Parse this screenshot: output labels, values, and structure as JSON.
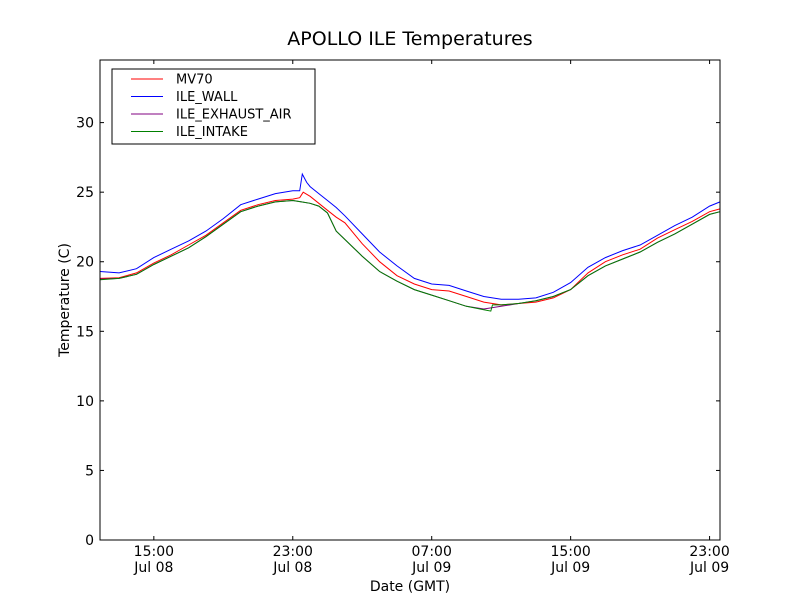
{
  "chart_data": {
    "type": "line",
    "title": "APOLLO ILE Temperatures",
    "xlabel": "Date (GMT)",
    "ylabel": "Temperature (C)",
    "ylim": [
      0,
      34.5
    ],
    "xlim_hours": [
      11.9,
      47.6
    ],
    "y_ticks": [
      0,
      5,
      10,
      15,
      20,
      25,
      30
    ],
    "x_ticks": [
      {
        "hour": 15,
        "time": "15:00",
        "date": "Jul 08"
      },
      {
        "hour": 23,
        "time": "23:00",
        "date": "Jul 08"
      },
      {
        "hour": 31,
        "time": "07:00",
        "date": "Jul 09"
      },
      {
        "hour": 39,
        "time": "15:00",
        "date": "Jul 09"
      },
      {
        "hour": 47,
        "time": "23:00",
        "date": "Jul 09"
      }
    ],
    "legend_position": "top-left",
    "series": [
      {
        "name": "MV70",
        "color": "#ff0000",
        "x": [
          11.9,
          13.0,
          14.0,
          15.0,
          16.0,
          17.0,
          18.0,
          19.0,
          20.0,
          21.0,
          22.0,
          23.0,
          23.4,
          23.6,
          24.0,
          24.5,
          25.0,
          25.5,
          26.0,
          27.0,
          28.0,
          29.0,
          30.0,
          31.0,
          32.0,
          33.0,
          34.0,
          35.0,
          36.0,
          37.0,
          38.0,
          39.0,
          40.0,
          41.0,
          42.0,
          43.0,
          44.0,
          45.0,
          46.0,
          47.0,
          47.6
        ],
        "y": [
          18.8,
          18.85,
          19.2,
          19.9,
          20.5,
          21.2,
          21.9,
          22.8,
          23.7,
          24.1,
          24.4,
          24.5,
          24.6,
          25.0,
          24.7,
          24.2,
          23.7,
          23.2,
          22.8,
          21.3,
          20.0,
          19.0,
          18.4,
          18.0,
          17.9,
          17.5,
          17.1,
          16.9,
          17.0,
          17.1,
          17.4,
          18.0,
          19.2,
          20.0,
          20.5,
          20.9,
          21.7,
          22.3,
          22.9,
          23.6,
          23.8
        ]
      },
      {
        "name": "ILE_WALL",
        "color": "#0000ff",
        "x": [
          11.9,
          13.0,
          14.0,
          15.0,
          16.0,
          17.0,
          18.0,
          19.0,
          20.0,
          21.0,
          22.0,
          23.0,
          23.4,
          23.55,
          23.8,
          24.0,
          24.5,
          25.0,
          25.5,
          26.0,
          27.0,
          28.0,
          29.0,
          30.0,
          31.0,
          32.0,
          33.0,
          34.0,
          35.0,
          36.0,
          37.0,
          38.0,
          39.0,
          40.0,
          41.0,
          42.0,
          43.0,
          44.0,
          45.0,
          46.0,
          47.0,
          47.6
        ],
        "y": [
          19.3,
          19.2,
          19.5,
          20.3,
          20.9,
          21.5,
          22.2,
          23.1,
          24.1,
          24.5,
          24.9,
          25.1,
          25.1,
          26.3,
          25.7,
          25.4,
          24.9,
          24.4,
          23.9,
          23.3,
          22.0,
          20.7,
          19.7,
          18.8,
          18.4,
          18.3,
          17.9,
          17.5,
          17.3,
          17.3,
          17.4,
          17.8,
          18.5,
          19.6,
          20.3,
          20.8,
          21.2,
          21.9,
          22.6,
          23.2,
          24.0,
          24.3
        ]
      },
      {
        "name": "ILE_EXHAUST_AIR",
        "color": "#800080",
        "x": [
          11.9,
          13.0,
          14.0,
          15.0,
          16.0,
          17.0,
          18.0,
          19.0,
          20.0,
          21.0,
          22.0,
          23.0,
          23.5,
          24.0,
          24.5,
          25.0,
          25.5,
          26.0,
          27.0,
          28.0,
          29.0,
          30.0,
          31.0,
          32.0,
          33.0,
          34.0,
          35.0,
          36.0,
          37.0,
          38.0,
          39.0,
          40.0,
          41.0,
          42.0,
          43.0,
          44.0,
          45.0,
          46.0,
          47.0,
          47.6
        ],
        "y": [
          18.75,
          18.8,
          19.1,
          19.8,
          20.4,
          21.0,
          21.8,
          22.7,
          23.6,
          24.0,
          24.3,
          24.4,
          24.3,
          24.2,
          24.0,
          23.5,
          22.2,
          21.6,
          20.4,
          19.3,
          18.6,
          18.0,
          17.6,
          17.2,
          16.8,
          16.6,
          16.8,
          17.0,
          17.2,
          17.5,
          18.0,
          19.0,
          19.7,
          20.2,
          20.7,
          21.4,
          22.0,
          22.7,
          23.4,
          23.6
        ]
      },
      {
        "name": "ILE_INTAKE",
        "color": "#008000",
        "x": [
          11.9,
          13.0,
          14.0,
          15.0,
          16.0,
          17.0,
          18.0,
          19.0,
          20.0,
          21.0,
          22.0,
          23.0,
          23.5,
          24.0,
          24.5,
          25.0,
          25.5,
          26.0,
          27.0,
          28.0,
          29.0,
          30.0,
          31.0,
          32.0,
          33.0,
          34.0,
          34.4,
          34.5,
          35.0,
          36.0,
          37.0,
          38.0,
          39.0,
          40.0,
          41.0,
          42.0,
          43.0,
          44.0,
          45.0,
          46.0,
          47.0,
          47.6
        ],
        "y": [
          18.7,
          18.8,
          19.1,
          19.8,
          20.4,
          21.0,
          21.8,
          22.7,
          23.6,
          24.0,
          24.3,
          24.4,
          24.3,
          24.2,
          24.0,
          23.5,
          22.2,
          21.6,
          20.4,
          19.3,
          18.6,
          18.0,
          17.6,
          17.2,
          16.8,
          16.55,
          16.45,
          16.9,
          16.9,
          17.0,
          17.2,
          17.5,
          18.0,
          19.0,
          19.7,
          20.2,
          20.7,
          21.4,
          22.0,
          22.7,
          23.4,
          23.6
        ]
      }
    ]
  }
}
